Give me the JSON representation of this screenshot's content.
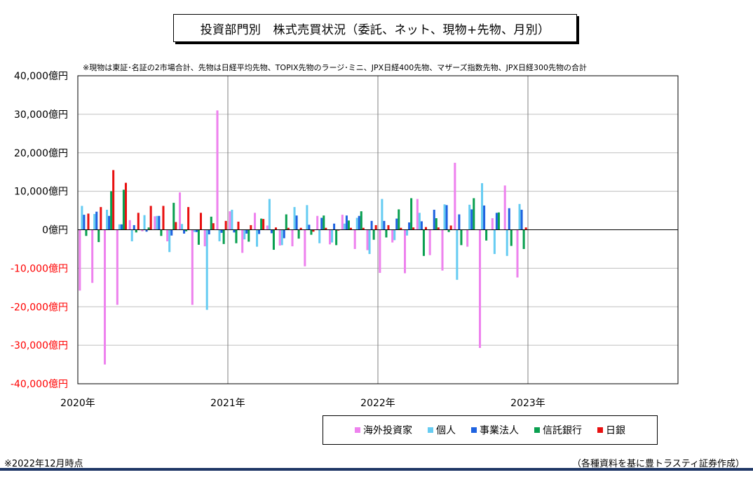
{
  "title": "投資部門別　株式売買状況（委託、ネット、現物+先物、月別）",
  "note_top": "※現物は東証･名証の2市場合計、先物は日経平均先物、TOPIX先物のラージ･ミニ、JPX日経400先物、マザーズ指数先物、JPX日経300先物の合計",
  "footer_left": "※2022年12月時点",
  "footer_right": "（各種資料を基に豊トラスティ証券作成）",
  "bottom_rule_color": "#1f3766",
  "chart_data": {
    "type": "bar",
    "ylim": [
      -40000,
      40000
    ],
    "y_ticks": [
      40000,
      30000,
      20000,
      10000,
      0,
      -10000,
      -20000,
      -30000,
      -40000
    ],
    "y_tick_labels": [
      "40,000億円",
      "30,000億円",
      "20,000億円",
      "10,000億円",
      "0億円",
      "-10,000億円",
      "-20,000億円",
      "-30,000億円",
      "-40,000億円"
    ],
    "x_tick_labels": [
      "2020年",
      "2021年",
      "2022年",
      "2023年"
    ],
    "x_tick_month_index": [
      0,
      12,
      24,
      36
    ],
    "month_slots": 48,
    "grid": true,
    "legend_position": "bottom-right",
    "categories": [
      "2020-01",
      "2020-02",
      "2020-03",
      "2020-04",
      "2020-05",
      "2020-06",
      "2020-07",
      "2020-08",
      "2020-09",
      "2020-10",
      "2020-11",
      "2020-12",
      "2021-01",
      "2021-02",
      "2021-03",
      "2021-04",
      "2021-05",
      "2021-06",
      "2021-07",
      "2021-08",
      "2021-09",
      "2021-10",
      "2021-11",
      "2021-12",
      "2022-01",
      "2022-02",
      "2022-03",
      "2022-04",
      "2022-05",
      "2022-06",
      "2022-07",
      "2022-08",
      "2022-09",
      "2022-10",
      "2022-11",
      "2022-12"
    ],
    "series": [
      {
        "name": "海外投資家",
        "color": "#ee82ee",
        "values": [
          -15800,
          -13800,
          -35000,
          -19500,
          2500,
          -400,
          3500,
          -3000,
          9700,
          -19500,
          -4300,
          31000,
          4800,
          -6000,
          4400,
          1100,
          -4100,
          -4300,
          -9500,
          3600,
          -3800,
          3900,
          -5000,
          -5300,
          -11200,
          -3300,
          -11300,
          8000,
          -6600,
          -10600,
          17400,
          -4400,
          -30700,
          3000,
          11500,
          -12400
        ]
      },
      {
        "name": "個人",
        "color": "#66ccf2",
        "values": [
          6200,
          4100,
          5200,
          1400,
          -3000,
          3800,
          3600,
          -5800,
          1500,
          -600,
          -20800,
          -3000,
          5200,
          -2500,
          -4400,
          8000,
          -4000,
          5900,
          6400,
          -3500,
          -3300,
          1600,
          3100,
          -6300,
          8000,
          -2700,
          -1500,
          4400,
          0,
          6600,
          -13000,
          6500,
          12100,
          -6300,
          -6800,
          6700
        ]
      },
      {
        "name": "事業法人",
        "color": "#1f63e0",
        "values": [
          3900,
          4700,
          3600,
          1400,
          1200,
          -500,
          3600,
          -1500,
          -1000,
          -600,
          -1200,
          -800,
          -700,
          -1000,
          -1100,
          -900,
          -2200,
          3700,
          1300,
          3100,
          1600,
          3700,
          3600,
          2300,
          2300,
          2900,
          1900,
          2200,
          5200,
          6400,
          4000,
          5300,
          6300,
          4400,
          5600,
          5200
        ]
      },
      {
        "name": "信託銀行",
        "color": "#0aa050",
        "values": [
          -1600,
          -3200,
          10000,
          10400,
          -700,
          600,
          -1600,
          7000,
          -400,
          -3900,
          3400,
          -3700,
          -3500,
          -3100,
          2900,
          -5200,
          4000,
          -2300,
          -1300,
          3700,
          -4000,
          2400,
          4800,
          -2600,
          -2000,
          5300,
          8200,
          -6800,
          3000,
          -600,
          -4000,
          8200,
          -2800,
          4500,
          -4200,
          -5000
        ]
      },
      {
        "name": "日銀",
        "color": "#e81010",
        "values": [
          4200,
          5900,
          15500,
          12200,
          4400,
          6200,
          6200,
          2000,
          5900,
          4400,
          1700,
          2300,
          2100,
          1200,
          2800,
          600,
          500,
          500,
          -500,
          500,
          -200,
          500,
          500,
          1200,
          1200,
          500,
          600,
          700,
          600,
          1100,
          0,
          0,
          0,
          0,
          0,
          600
        ]
      }
    ]
  }
}
